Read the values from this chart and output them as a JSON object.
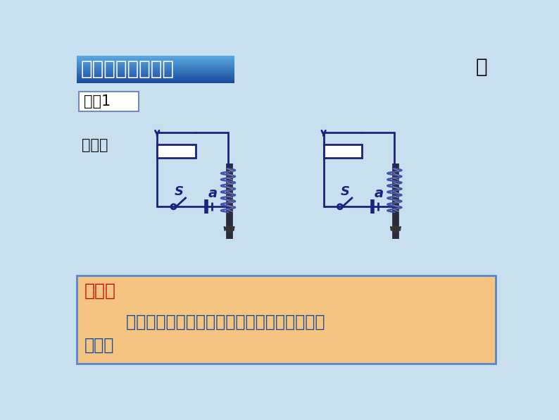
{
  "bg_color": "#c8dff0",
  "title_grad_colors": [
    "#5a9fd4",
    "#3a70b8",
    "#2a55a0",
    "#1e4a90"
  ],
  "title_text": "二、电磁铁的磁性",
  "title_text_color": "#ffffff",
  "demo_text": "演示1",
  "demo_border": "#7788aa",
  "phenomenon_text": "现象：",
  "circuit_color": "#1a237e",
  "label_a": "a",
  "label_S": "S",
  "conclusion_bg": "#f5c480",
  "conclusion_border": "#5588cc",
  "conclusion_label": "结论：",
  "conclusion_label_color": "#cc1111",
  "conclusion_line1": "        匝数一定时，通入的电流越大，电磁铁的磁性",
  "conclusion_line2": "越强。",
  "conclusion_text_color": "#1a4fa0"
}
